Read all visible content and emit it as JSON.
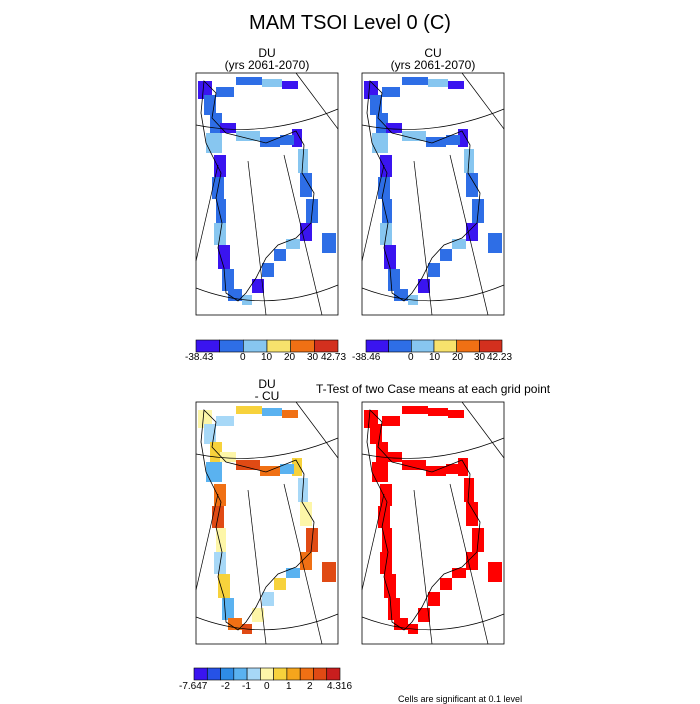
{
  "figure_title": "MAM TSOI Level 0 (C)",
  "panels": {
    "du": {
      "name": "DU",
      "years": "(yrs 2061-2070)"
    },
    "cu": {
      "name": "CU",
      "years": "(yrs 2061-2070)"
    },
    "diff": {
      "name": "DU",
      "subtitle": "- CU"
    },
    "ttest": {
      "title": "T-Test of two Case means at each grid point"
    }
  },
  "colorbars": {
    "du": {
      "colors": [
        "#3a14f0",
        "#2e6ee6",
        "#87c6f0",
        "#f7e26c",
        "#f07014",
        "#d3301e"
      ],
      "labels": [
        "-38.43",
        "0",
        "10",
        "20",
        "30",
        "42.73"
      ]
    },
    "cu": {
      "colors": [
        "#3a14f0",
        "#2e6ee6",
        "#87c6f0",
        "#f7e26c",
        "#f07014",
        "#d3301e"
      ],
      "labels": [
        "-38.46",
        "0",
        "10",
        "20",
        "30",
        "42.23"
      ]
    },
    "diff": {
      "colors": [
        "#3a14f0",
        "#2652e6",
        "#2e8ce6",
        "#5ab2f0",
        "#a7d8f7",
        "#fdf6a8",
        "#f7d23c",
        "#f5a51c",
        "#f07014",
        "#e04a14",
        "#c81e1e"
      ],
      "labels": [
        "-7.647",
        "-2",
        "-1",
        "0",
        "1",
        "2",
        "4.316"
      ]
    }
  },
  "footnote": "Cells are significant at 0.1 level"
}
